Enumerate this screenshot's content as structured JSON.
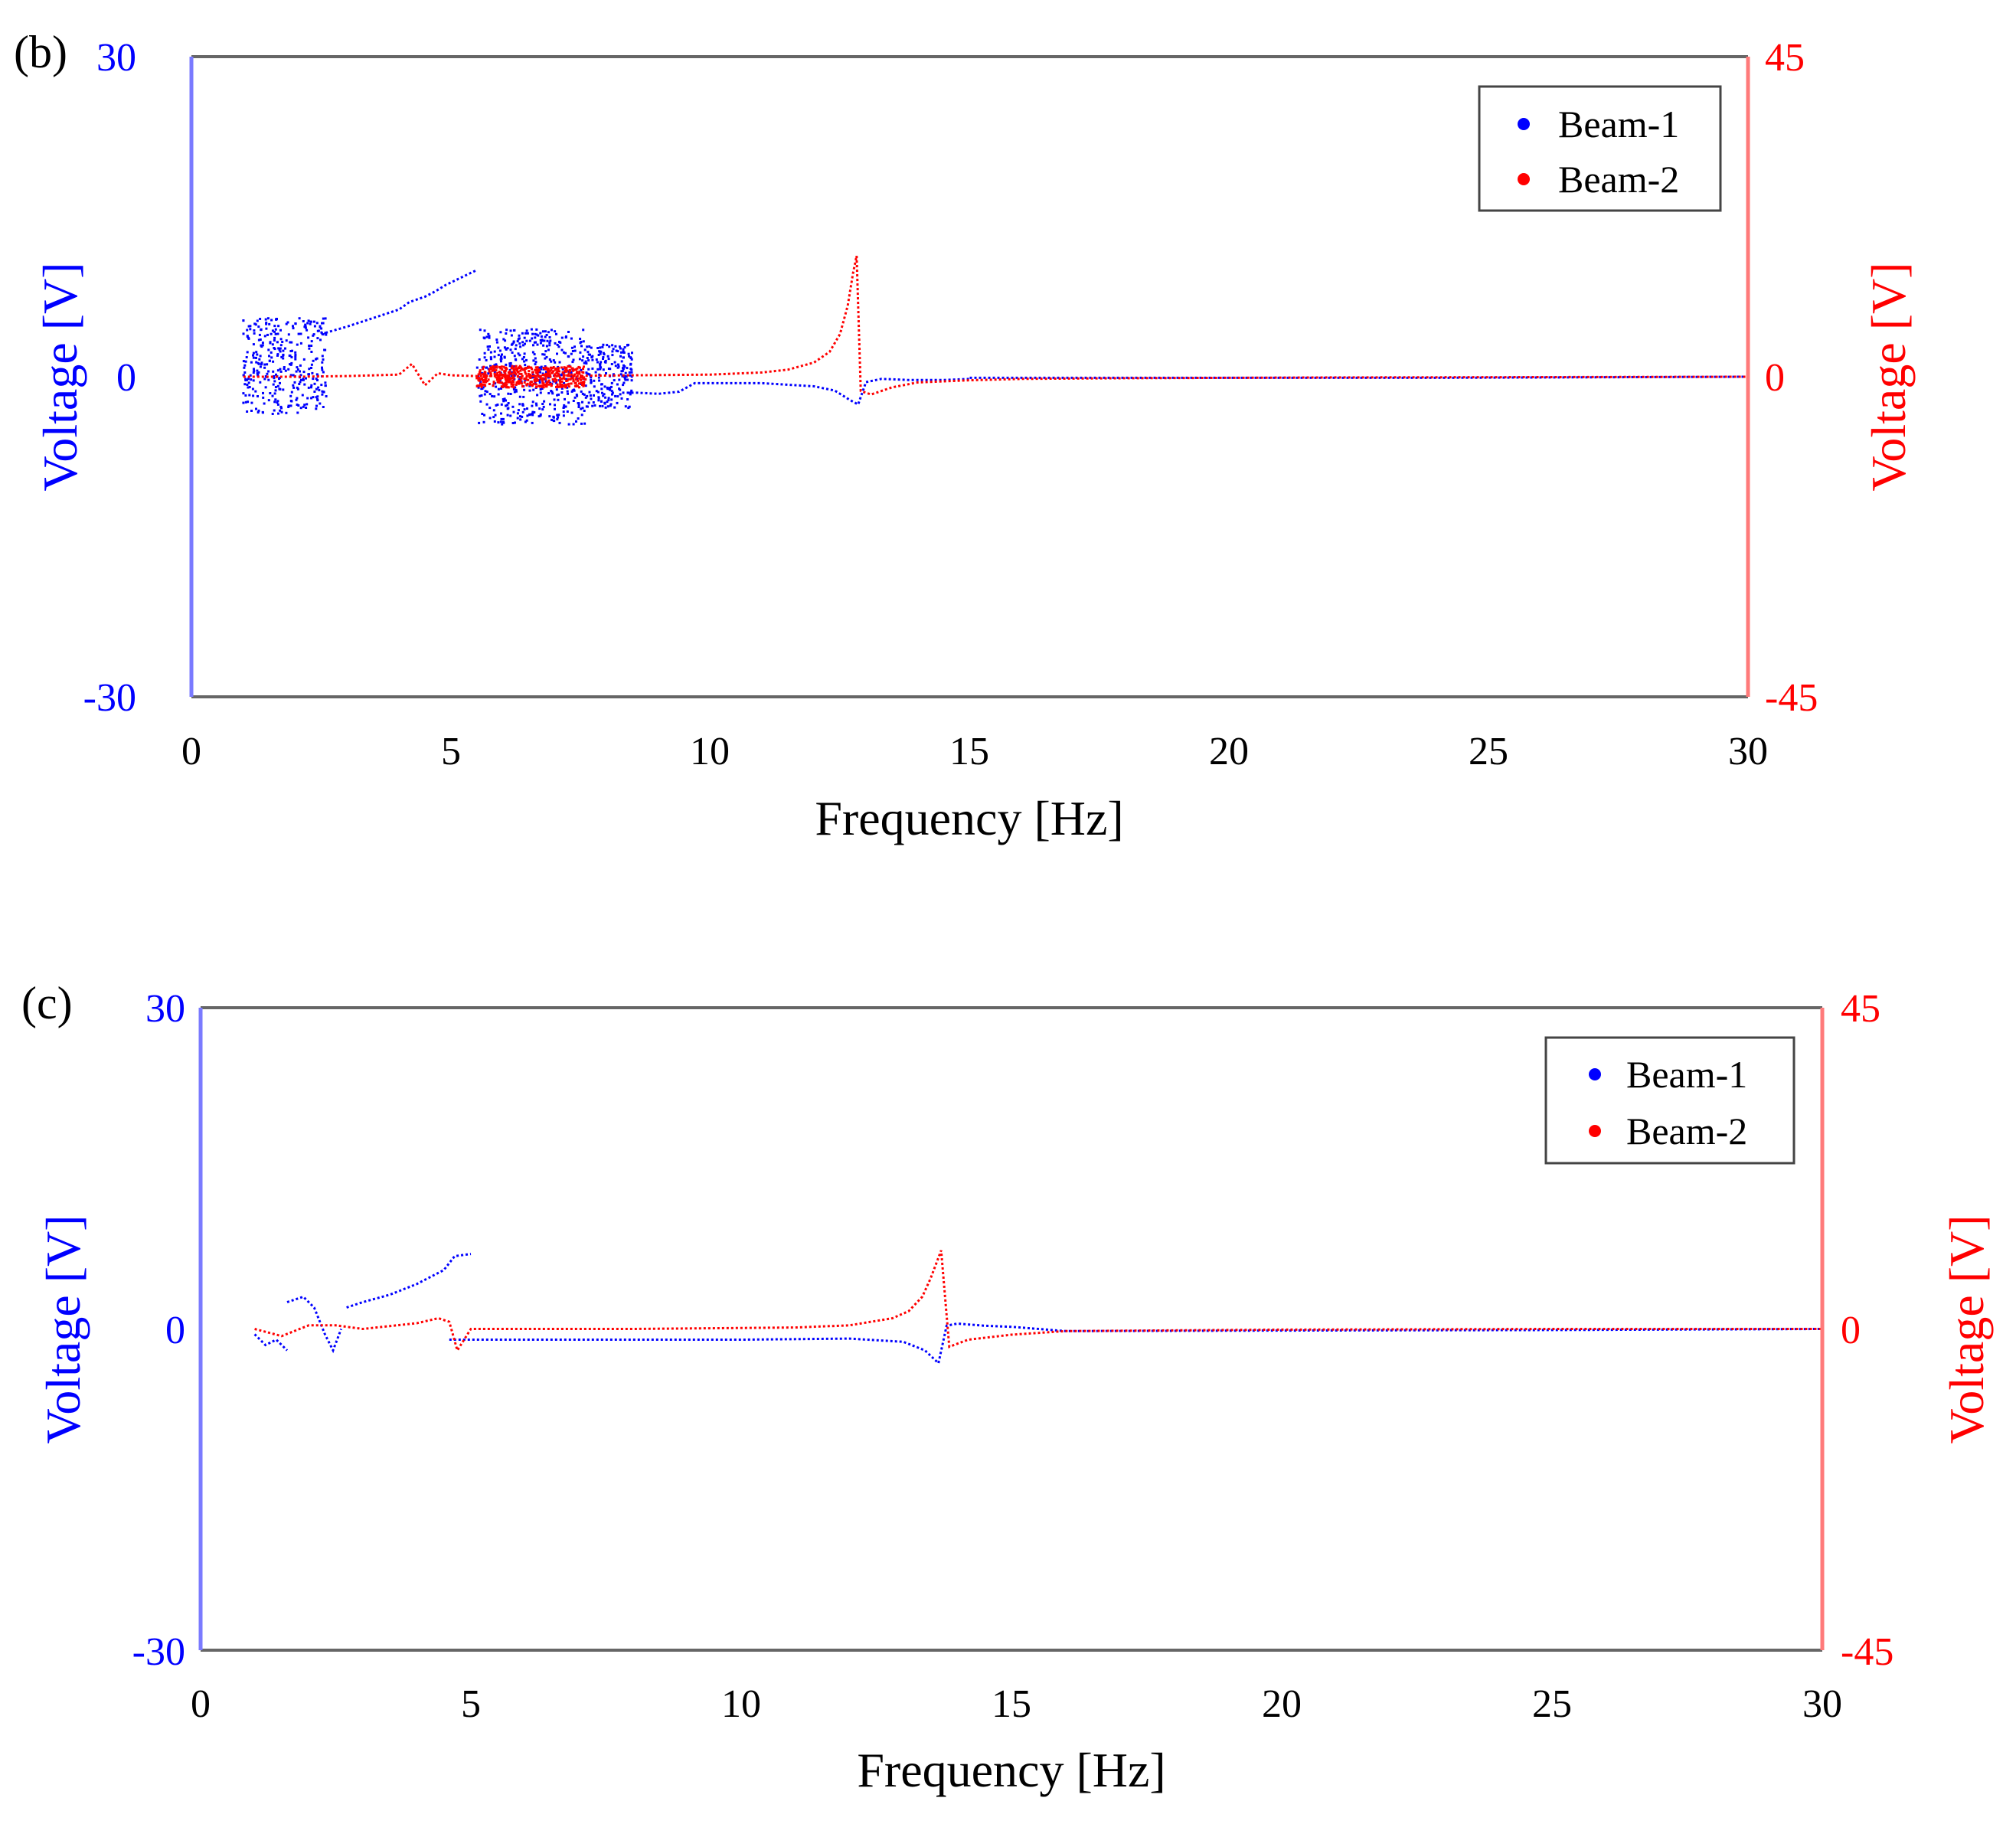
{
  "chart_data": [
    {
      "type": "scatter",
      "panel_label": "(b)",
      "xlabel": "Frequency [Hz]",
      "ylabel_left": "Voltage [V]",
      "ylabel_right": "Voltage [V]",
      "xlim": [
        0,
        30
      ],
      "ylim_left": [
        -30,
        30
      ],
      "ylim_right": [
        -45,
        45
      ],
      "x_ticks": [
        "0",
        "5",
        "10",
        "15",
        "20",
        "25",
        "30"
      ],
      "y_ticks_left": [
        "30",
        "0",
        "-30"
      ],
      "y_ticks_right": [
        "45",
        "0",
        "-45"
      ],
      "left_axis_color": "#0000ff",
      "right_axis_color": "#ff0000",
      "legend": {
        "placement": "top-right",
        "entries": [
          "Beam-1",
          "Beam-2"
        ]
      },
      "series": [
        {
          "name": "Beam-1",
          "axis": "left",
          "color": "#0000ff",
          "curves": [
            {
              "x": [
                2.5,
                3.0,
                3.5,
                4.0,
                4.2,
                4.5,
                4.7,
                4.9,
                5.2,
                5.5
              ],
              "y": [
                4.0,
                4.7,
                5.5,
                6.3,
                7.0,
                7.5,
                8.0,
                8.6,
                9.3,
                10.0
              ]
            },
            {
              "x": [
                8.3,
                8.6,
                9.0,
                9.4,
                9.7,
                10.0,
                11.0,
                12.0,
                12.4,
                12.7,
                12.85,
                13.0,
                13.3,
                13.8,
                14.5,
                15.0
              ],
              "y": [
                -1.5,
                -1.5,
                -1.6,
                -1.4,
                -0.6,
                -0.6,
                -0.6,
                -0.9,
                -1.3,
                -2.2,
                -2.6,
                -0.5,
                -0.2,
                -0.3,
                -0.3,
                -0.2
              ]
            },
            {
              "x": [
                15.0,
                18.0,
                21.0,
                24.0,
                27.0,
                30.0
              ],
              "y": [
                -0.1,
                -0.1,
                -0.1,
                -0.1,
                -0.05,
                0.0
              ]
            }
          ],
          "scatter_bands": [
            {
              "x_range": [
                1.0,
                2.2
              ],
              "y_range": [
                -3.5,
                5.5
              ]
            },
            {
              "x_range": [
                2.2,
                2.6
              ],
              "y_range": [
                -3.0,
                5.5
              ]
            },
            {
              "x_range": [
                5.5,
                7.6
              ],
              "y_range": [
                -4.5,
                4.5
              ]
            },
            {
              "x_range": [
                7.6,
                8.5
              ],
              "y_range": [
                -3.0,
                3.0
              ]
            }
          ]
        },
        {
          "name": "Beam-2",
          "axis": "right",
          "color": "#ff0000",
          "curves": [
            {
              "x": [
                1.0,
                2.0,
                3.0,
                4.0,
                4.25,
                4.5,
                4.75,
                5.0,
                5.5,
                7.0,
                8.5,
                10.0,
                11.0,
                11.5,
                12.0,
                12.3,
                12.5,
                12.65,
                12.75,
                12.82,
                12.9,
                13.1,
                13.5,
                14.0,
                15.0,
                16.0,
                18.0,
                22.0,
                26.0,
                30.0
              ],
              "y": [
                0.0,
                0.0,
                0.1,
                0.3,
                1.8,
                -1.2,
                0.5,
                0.2,
                0.1,
                0.1,
                0.2,
                0.3,
                0.6,
                1.0,
                2.0,
                3.5,
                6.0,
                10.0,
                14.5,
                17.0,
                -2.0,
                -2.5,
                -1.5,
                -0.8,
                -0.5,
                -0.3,
                -0.2,
                -0.1,
                -0.05,
                0.0
              ]
            }
          ],
          "scatter_bands": [
            {
              "x_range": [
                5.5,
                7.6
              ],
              "y_range": [
                -1.5,
                1.5
              ]
            }
          ]
        }
      ]
    },
    {
      "type": "scatter",
      "panel_label": "(c)",
      "xlabel": "Frequency [Hz]",
      "ylabel_left": "Voltage [V]",
      "ylabel_right": "Voltage [V]",
      "xlim": [
        0,
        30
      ],
      "ylim_left": [
        -30,
        30
      ],
      "ylim_right": [
        -45,
        45
      ],
      "x_ticks": [
        "0",
        "5",
        "10",
        "15",
        "20",
        "25",
        "30"
      ],
      "y_ticks_left": [
        "30",
        "0",
        "-30"
      ],
      "y_ticks_right": [
        "45",
        "0",
        "-45"
      ],
      "left_axis_color": "#0000ff",
      "right_axis_color": "#ff0000",
      "legend": {
        "placement": "top-right",
        "entries": [
          "Beam-1",
          "Beam-2"
        ]
      },
      "series": [
        {
          "name": "Beam-1",
          "axis": "left",
          "color": "#0000ff",
          "curves": [
            {
              "x": [
                1.0,
                1.2,
                1.4,
                1.6
              ],
              "y": [
                -0.5,
                -1.5,
                -1.0,
                -2.0
              ]
            },
            {
              "x": [
                1.6,
                1.9,
                2.1,
                2.3,
                2.45,
                2.6
              ],
              "y": [
                2.5,
                3.0,
                2.0,
                -0.5,
                -2.0,
                0.0
              ]
            },
            {
              "x": [
                2.7,
                3.0,
                3.5,
                4.0,
                4.5,
                4.7,
                5.0
              ],
              "y": [
                2.0,
                2.5,
                3.2,
                4.2,
                5.5,
                6.8,
                7.0
              ]
            },
            {
              "x": [
                4.6,
                5.0,
                7.0,
                10.0,
                12.0,
                13.0,
                13.4,
                13.65,
                13.8,
                14.0,
                14.5,
                15.0,
                16.0,
                20.0,
                25.0,
                30.0
              ],
              "y": [
                -1.0,
                -1.0,
                -1.0,
                -1.0,
                -0.9,
                -1.2,
                -2.0,
                -3.2,
                0.3,
                0.5,
                0.3,
                0.2,
                -0.2,
                -0.15,
                -0.1,
                0.0
              ]
            }
          ],
          "scatter_bands": []
        },
        {
          "name": "Beam-2",
          "axis": "right",
          "color": "#ff0000",
          "curves": [
            {
              "x": [
                1.0,
                1.5,
                2.0,
                2.5,
                3.0,
                4.0,
                4.4,
                4.6,
                4.75,
                5.0,
                8.0,
                11.0,
                12.0,
                12.8,
                13.1,
                13.35,
                13.5,
                13.6,
                13.7,
                13.85,
                14.2,
                15.0,
                16.0,
                20.0,
                25.0,
                30.0
              ],
              "y": [
                0.0,
                -1.0,
                0.5,
                0.5,
                0.0,
                0.8,
                1.5,
                1.0,
                -3.0,
                0.0,
                0.0,
                0.2,
                0.5,
                1.5,
                2.5,
                4.5,
                7.0,
                9.0,
                11.0,
                -2.5,
                -1.5,
                -0.8,
                -0.3,
                -0.1,
                0.0,
                0.0
              ]
            }
          ],
          "scatter_bands": []
        }
      ]
    }
  ]
}
